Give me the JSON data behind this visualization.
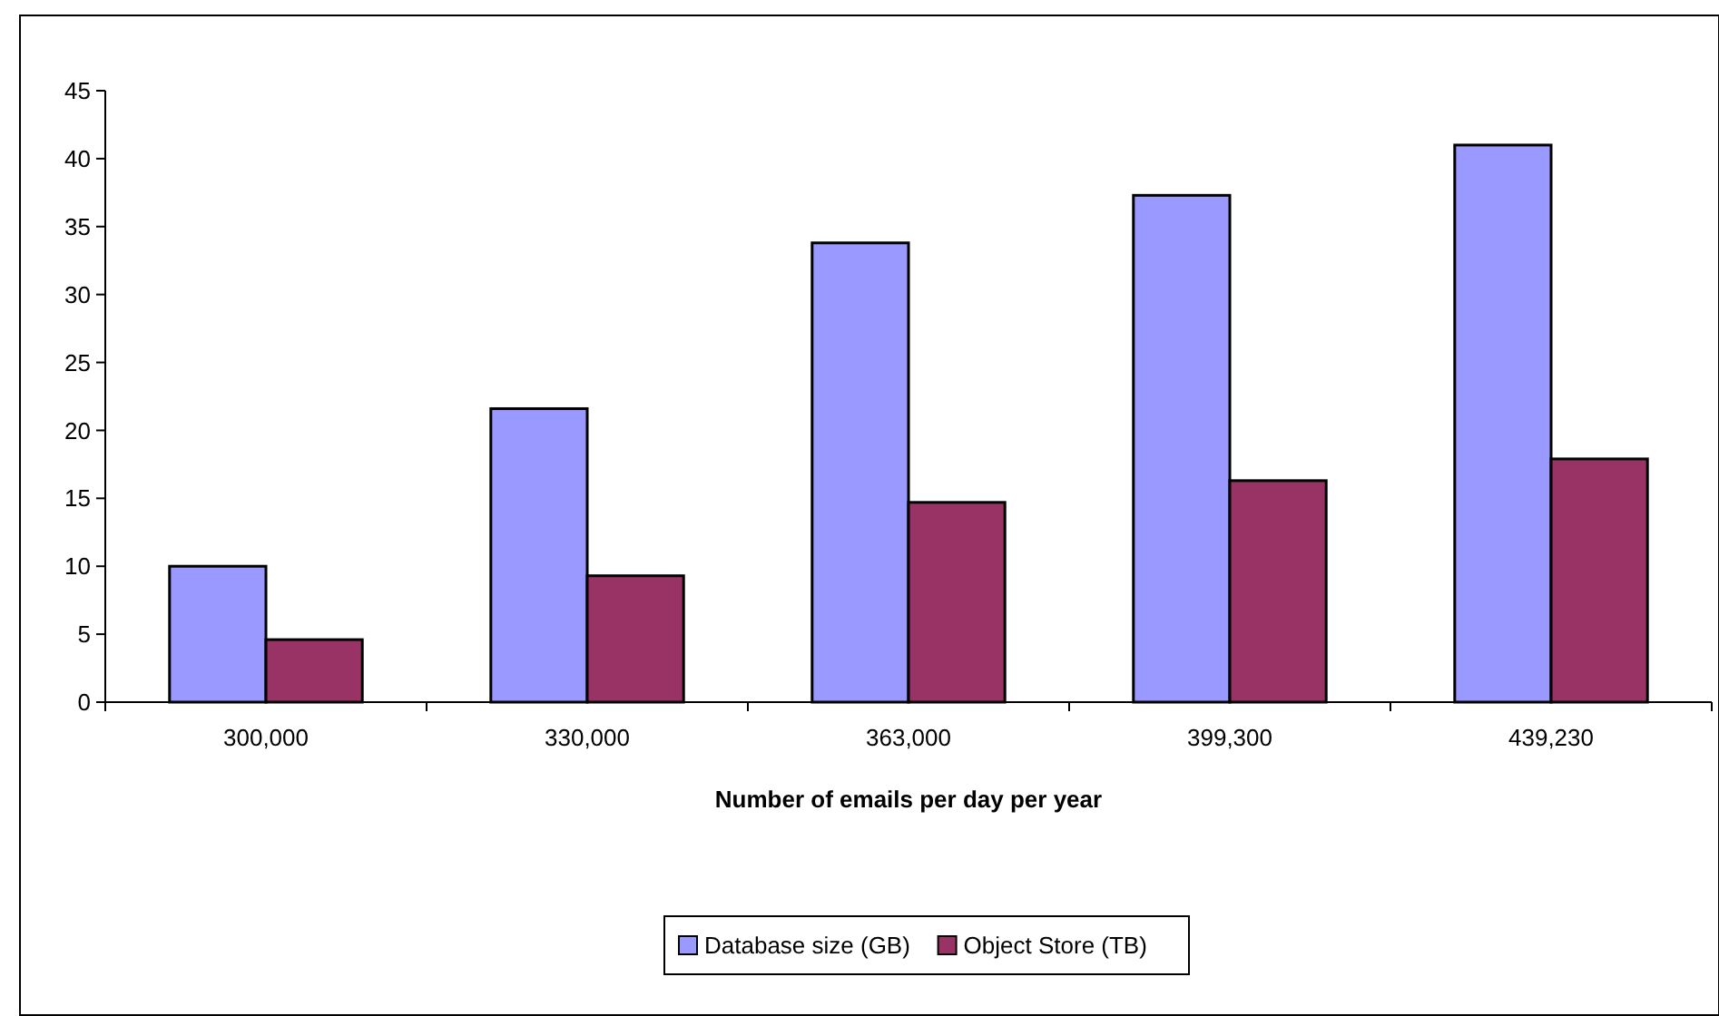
{
  "chart_data": {
    "type": "bar",
    "xlabel": "Number of emails per day per year",
    "categories": [
      "300,000",
      "330,000",
      "363,000",
      "399,300",
      "439,230"
    ],
    "series": [
      {
        "name": "Database size (GB)",
        "color": "#9999ff",
        "values": [
          10.0,
          21.6,
          33.8,
          37.3,
          41.0
        ]
      },
      {
        "name": "Object Store (TB)",
        "color": "#993366",
        "values": [
          4.6,
          9.3,
          14.7,
          16.3,
          17.9
        ]
      }
    ],
    "ylim": [
      0,
      45
    ],
    "yticks": [
      0,
      5,
      10,
      15,
      20,
      25,
      30,
      35,
      40,
      45
    ],
    "grid": false,
    "legend": "bottom"
  }
}
